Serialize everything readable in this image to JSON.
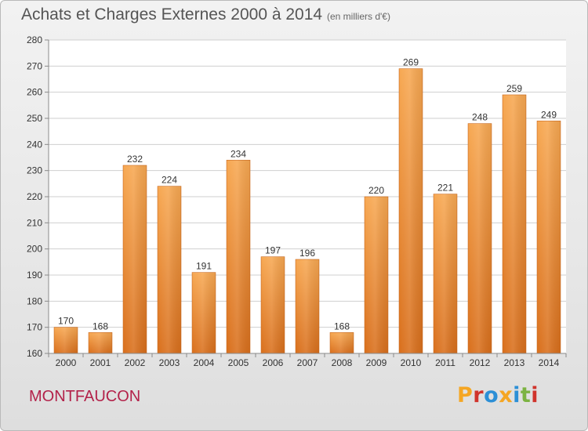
{
  "header": {
    "title": "Achats et Charges Externes 2000 à 2014",
    "subtitle": "(en milliers d'€)"
  },
  "footer": {
    "location": "MONTFAUCON",
    "brand": "Proxiti",
    "brand_colors": [
      "#f5a623",
      "#d0342c",
      "#2c8fd6",
      "#f5a623",
      "#2c8fd6",
      "#7cb342",
      "#d0342c"
    ]
  },
  "colors": {
    "bar_top": "#f7a852",
    "bar_bottom": "#d96f1c",
    "grid": "#cfcfcf",
    "axis": "#8a8a8a",
    "text": "#333333"
  },
  "chart_data": {
    "type": "bar",
    "categories": [
      "2000",
      "2001",
      "2002",
      "2003",
      "2004",
      "2005",
      "2006",
      "2007",
      "2008",
      "2009",
      "2010",
      "2011",
      "2012",
      "2013",
      "2014"
    ],
    "values": [
      170,
      168,
      232,
      224,
      191,
      234,
      197,
      196,
      168,
      220,
      269,
      221,
      248,
      259,
      249
    ],
    "data_labels": [
      "170",
      "168",
      "232",
      "224",
      "191",
      "234",
      "197",
      "196",
      "168",
      "220",
      "269",
      "221",
      "248",
      "259",
      "249"
    ],
    "title": "Achats et Charges Externes 2000 à 2014",
    "xlabel": "",
    "ylabel": "",
    "ylim": [
      160,
      280
    ],
    "yticks": [
      160,
      170,
      180,
      190,
      200,
      210,
      220,
      230,
      240,
      250,
      260,
      270,
      280
    ],
    "grid": true
  }
}
